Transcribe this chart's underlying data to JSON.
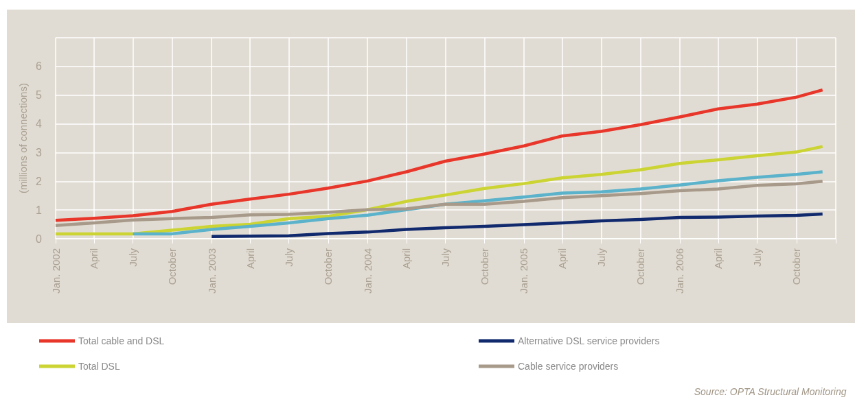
{
  "chart_data": {
    "type": "line",
    "ylabel": "(millions of connections)",
    "xlim": [
      "2002-01",
      "2007-01"
    ],
    "ylim": [
      0,
      7
    ],
    "yticks": [
      0,
      1,
      2,
      3,
      4,
      5,
      6,
      {
        "value": 7,
        "label": null
      }
    ],
    "xticks": [
      {
        "value": "2002-01",
        "label": "Jan. 2002"
      },
      {
        "value": "2002-04",
        "label": "April"
      },
      {
        "value": "2002-07",
        "label": "July"
      },
      {
        "value": "2002-10",
        "label": "October"
      },
      {
        "value": "2003-01",
        "label": "Jan. 2003"
      },
      {
        "value": "2003-04",
        "label": "April"
      },
      {
        "value": "2003-07",
        "label": "July"
      },
      {
        "value": "2003-10",
        "label": "October"
      },
      {
        "value": "2004-01",
        "label": "Jan. 2004"
      },
      {
        "value": "2004-04",
        "label": "April"
      },
      {
        "value": "2004-07",
        "label": "July"
      },
      {
        "value": "2004-10",
        "label": "October"
      },
      {
        "value": "2005-01",
        "label": "Jan. 2005"
      },
      {
        "value": "2005-04",
        "label": "April"
      },
      {
        "value": "2005-07",
        "label": "July"
      },
      {
        "value": "2005-10",
        "label": "October"
      },
      {
        "value": "2006-01",
        "label": "Jan. 2006"
      },
      {
        "value": "2006-04",
        "label": "April"
      },
      {
        "value": "2006-07",
        "label": "July"
      },
      {
        "value": "2006-10",
        "label": "October"
      },
      {
        "value": "2007-01",
        "label": null
      }
    ],
    "x": [
      "2002-01",
      "2002-04",
      "2002-07",
      "2002-10",
      "2003-01",
      "2003-04",
      "2003-07",
      "2003-10",
      "2004-01",
      "2004-04",
      "2004-07",
      "2004-10",
      "2005-01",
      "2005-04",
      "2005-07",
      "2005-10",
      "2006-01",
      "2006-04",
      "2006-07",
      "2006-10",
      "2006-12"
    ],
    "series": [
      {
        "name": "Total cable and DSL",
        "color": "#e8362a",
        "values": [
          0.64,
          0.71,
          0.8,
          0.95,
          1.2,
          1.38,
          1.55,
          1.76,
          2.01,
          2.33,
          2.7,
          2.95,
          3.23,
          3.58,
          3.74,
          3.97,
          4.24,
          4.52,
          4.69,
          4.93,
          5.18
        ]
      },
      {
        "name": "Total DSL",
        "color": "#cbd432",
        "values": [
          0.17,
          0.17,
          0.17,
          0.3,
          0.43,
          0.5,
          0.7,
          0.78,
          1.01,
          1.3,
          1.52,
          1.75,
          1.92,
          2.12,
          2.24,
          2.4,
          2.62,
          2.75,
          2.89,
          3.02,
          3.21
        ]
      },
      {
        "color": "#5ab2cb",
        "values": [
          null,
          null,
          0.17,
          0.17,
          0.32,
          0.43,
          0.55,
          0.7,
          0.82,
          1.01,
          1.2,
          1.32,
          1.45,
          1.59,
          1.63,
          1.73,
          1.87,
          2.02,
          2.14,
          2.24,
          2.33
        ]
      },
      {
        "name": "Alternative DSL service providers",
        "color": "#112a6e",
        "values": [
          null,
          null,
          null,
          null,
          0.08,
          0.09,
          0.1,
          0.18,
          0.23,
          0.32,
          0.38,
          0.43,
          0.49,
          0.55,
          0.62,
          0.67,
          0.74,
          0.75,
          0.79,
          0.81,
          0.86
        ]
      },
      {
        "name": "Cable service providers",
        "color": "#a89a8a",
        "values": [
          0.46,
          0.55,
          0.65,
          0.7,
          0.74,
          0.83,
          0.85,
          0.92,
          1.01,
          1.04,
          1.2,
          1.2,
          1.3,
          1.43,
          1.5,
          1.57,
          1.67,
          1.73,
          1.86,
          1.91,
          2.0
        ]
      }
    ],
    "grid": true,
    "legend": "bottom",
    "marker": "none",
    "line_style": "solid",
    "annotations": [
      "Source: OPTA Structural Monitoring"
    ]
  }
}
